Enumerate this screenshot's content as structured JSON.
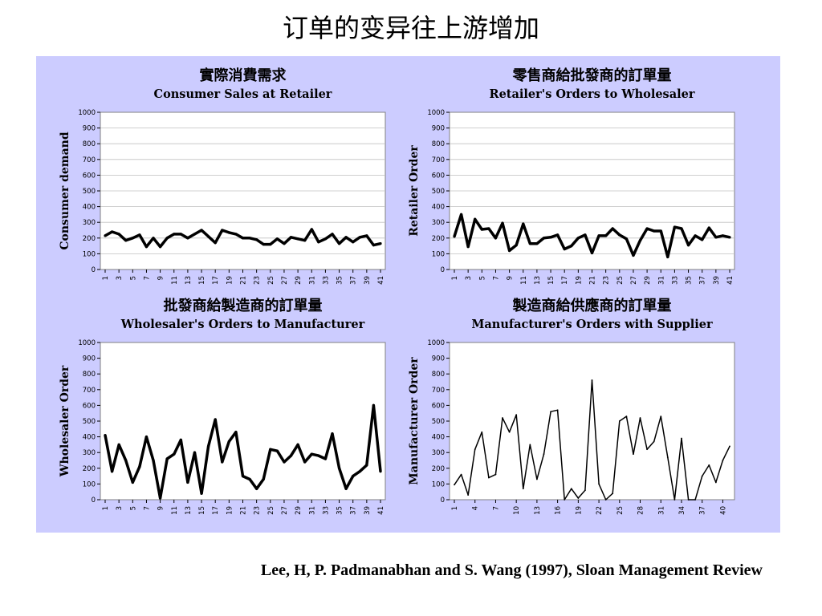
{
  "slide": {
    "title": "订单的变异往上游增加",
    "citation": "Lee, H, P. Padmanabhan and S. Wang (1997), Sloan Management Review"
  },
  "colors": {
    "panel_bg": "#ccccff",
    "plot_bg": "#ffffff",
    "line": "#000000",
    "accent": "#ff00ff",
    "gridline": "#c0c0c0"
  },
  "chart_data": [
    {
      "type": "line",
      "title_cn": "實際消費需求",
      "title": "Consumer Sales at Retailer",
      "ylabel": "Consumer demand",
      "xlabel": "",
      "ylim": [
        0,
        1000
      ],
      "yticks": [
        0,
        100,
        200,
        300,
        400,
        500,
        600,
        700,
        800,
        900,
        1000
      ],
      "xtick_labels": [
        "1",
        "3",
        "5",
        "7",
        "9",
        "11",
        "13",
        "15",
        "17",
        "19",
        "21",
        "23",
        "25",
        "27",
        "29",
        "31",
        "33",
        "35",
        "37",
        "39",
        "41"
      ],
      "grid": true,
      "line_style": "thick",
      "x": [
        1,
        2,
        3,
        4,
        5,
        6,
        7,
        8,
        9,
        10,
        11,
        12,
        13,
        14,
        15,
        16,
        17,
        18,
        19,
        20,
        21,
        22,
        23,
        24,
        25,
        26,
        27,
        28,
        29,
        30,
        31,
        32,
        33,
        34,
        35,
        36,
        37,
        38,
        39,
        40,
        41
      ],
      "series": [
        {
          "values": [
            215,
            240,
            225,
            185,
            200,
            220,
            145,
            200,
            145,
            200,
            225,
            225,
            200,
            225,
            250,
            210,
            170,
            250,
            235,
            225,
            200,
            200,
            190,
            160,
            160,
            195,
            165,
            205,
            195,
            185,
            255,
            175,
            195,
            225,
            165,
            205,
            175,
            205,
            215,
            155,
            165
          ]
        }
      ]
    },
    {
      "type": "line",
      "title_cn": "零售商給批發商的訂單量",
      "title": "Retailer's Orders to Wholesaler",
      "ylabel": "Retailer Order",
      "xlabel": "",
      "ylim": [
        0,
        1000
      ],
      "yticks": [
        0,
        100,
        200,
        300,
        400,
        500,
        600,
        700,
        800,
        900,
        1000
      ],
      "xtick_labels": [
        "1",
        "3",
        "5",
        "7",
        "9",
        "11",
        "13",
        "15",
        "17",
        "19",
        "21",
        "23",
        "25",
        "27",
        "29",
        "31",
        "33",
        "35",
        "37",
        "39",
        "41"
      ],
      "grid": true,
      "line_style": "thick",
      "x": [
        1,
        2,
        3,
        4,
        5,
        6,
        7,
        8,
        9,
        10,
        11,
        12,
        13,
        14,
        15,
        16,
        17,
        18,
        19,
        20,
        21,
        22,
        23,
        24,
        25,
        26,
        27,
        28,
        29,
        30,
        31,
        32,
        33,
        34,
        35,
        36,
        37,
        38,
        39,
        40,
        41
      ],
      "series": [
        {
          "values": [
            210,
            350,
            145,
            320,
            255,
            260,
            200,
            295,
            120,
            155,
            290,
            165,
            165,
            200,
            205,
            220,
            130,
            150,
            200,
            220,
            105,
            215,
            215,
            260,
            220,
            195,
            90,
            185,
            260,
            245,
            245,
            80,
            270,
            260,
            155,
            215,
            190,
            265,
            205,
            215,
            205
          ]
        }
      ]
    },
    {
      "type": "line",
      "title_cn": "批發商給製造商的訂單量",
      "title": "Wholesaler's Orders to Manufacturer",
      "ylabel": "Wholesaler Order",
      "xlabel": "",
      "ylim": [
        0,
        1000
      ],
      "yticks": [
        0,
        100,
        200,
        300,
        400,
        500,
        600,
        700,
        800,
        900,
        1000
      ],
      "xtick_labels": [
        "1",
        "3",
        "5",
        "7",
        "9",
        "11",
        "13",
        "15",
        "17",
        "19",
        "21",
        "23",
        "25",
        "27",
        "29",
        "31",
        "33",
        "35",
        "37",
        "39",
        "41"
      ],
      "grid": false,
      "line_style": "thick",
      "x": [
        1,
        2,
        3,
        4,
        5,
        6,
        7,
        8,
        9,
        10,
        11,
        12,
        13,
        14,
        15,
        16,
        17,
        18,
        19,
        20,
        21,
        22,
        23,
        24,
        25,
        26,
        27,
        28,
        29,
        30,
        31,
        32,
        33,
        34,
        35,
        36,
        37,
        38,
        39,
        40,
        41
      ],
      "series": [
        {
          "values": [
            410,
            180,
            350,
            250,
            110,
            210,
            400,
            250,
            10,
            260,
            290,
            380,
            110,
            300,
            40,
            340,
            510,
            240,
            370,
            430,
            150,
            130,
            70,
            130,
            320,
            310,
            240,
            280,
            350,
            240,
            290,
            280,
            260,
            420,
            200,
            70,
            150,
            180,
            220,
            600,
            180
          ]
        }
      ]
    },
    {
      "type": "line",
      "title_cn": "製造商給供應商的訂單量",
      "title": "Manufacturer's Orders with Supplier",
      "ylabel": "Manufacturer Order",
      "xlabel": "",
      "ylim": [
        0,
        1000
      ],
      "yticks": [
        0,
        100,
        200,
        300,
        400,
        500,
        600,
        700,
        800,
        900,
        1000
      ],
      "xtick_labels": [
        "1",
        "4",
        "7",
        "10",
        "13",
        "16",
        "19",
        "22",
        "25",
        "28",
        "31",
        "34",
        "37",
        "40"
      ],
      "xtick_positions": [
        1,
        4,
        7,
        10,
        13,
        16,
        19,
        22,
        25,
        28,
        31,
        34,
        37,
        40
      ],
      "grid": false,
      "line_style": "thin",
      "x": [
        1,
        2,
        3,
        4,
        5,
        6,
        7,
        8,
        9,
        10,
        11,
        12,
        13,
        14,
        15,
        16,
        17,
        18,
        19,
        20,
        21,
        22,
        23,
        24,
        25,
        26,
        27,
        28,
        29,
        30,
        31,
        32,
        33,
        34,
        35,
        36,
        37,
        38,
        39,
        40,
        41
      ],
      "series": [
        {
          "values": [
            95,
            160,
            30,
            320,
            430,
            140,
            160,
            520,
            430,
            540,
            70,
            350,
            130,
            290,
            560,
            570,
            0,
            70,
            10,
            60,
            760,
            100,
            0,
            40,
            500,
            530,
            290,
            520,
            320,
            370,
            530,
            270,
            0,
            390,
            0,
            0,
            150,
            220,
            110,
            250,
            340
          ]
        }
      ]
    }
  ]
}
